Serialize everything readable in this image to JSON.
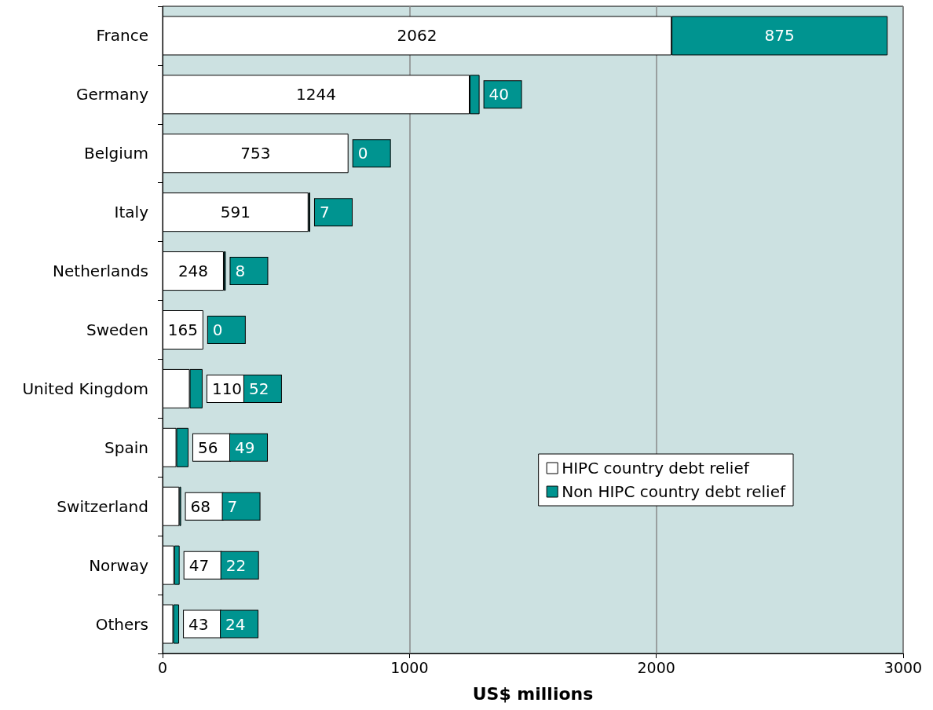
{
  "chart_data": {
    "type": "bar",
    "orientation": "horizontal",
    "stacked": true,
    "categories": [
      "France",
      "Germany",
      "Belgium",
      "Italy",
      "Netherlands",
      "Sweden",
      "United Kingdom",
      "Spain",
      "Switzerland",
      "Norway",
      "Others"
    ],
    "series": [
      {
        "name": "HIPC country debt relief",
        "color": "#ffffff",
        "values": [
          2062,
          1244,
          753,
          591,
          248,
          165,
          110,
          56,
          68,
          47,
          43
        ]
      },
      {
        "name": "Non HIPC country debt relief",
        "color": "#009490",
        "values": [
          875,
          40,
          0,
          7,
          8,
          0,
          52,
          49,
          7,
          22,
          24
        ]
      }
    ],
    "data_labels": true,
    "xlabel": "US$ millions",
    "xlim": [
      0,
      3000
    ],
    "xticks": [
      0,
      1000,
      2000,
      3000
    ],
    "grid": "x",
    "legend": "right"
  }
}
